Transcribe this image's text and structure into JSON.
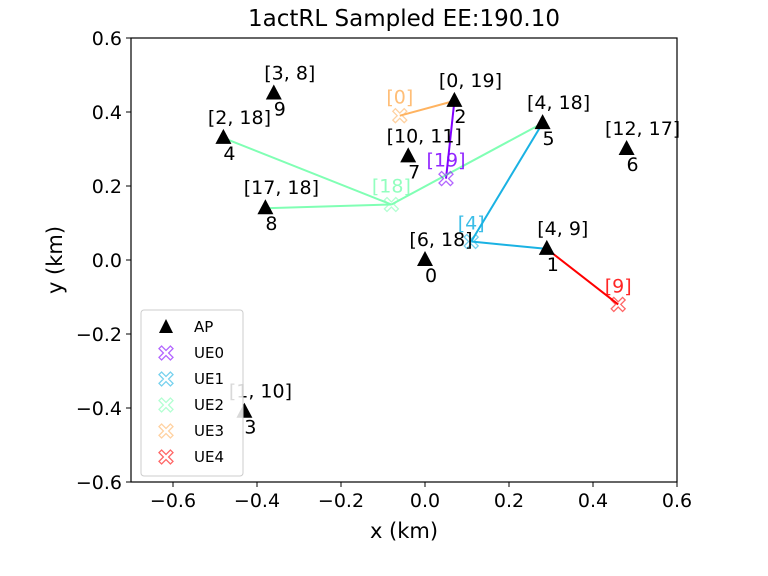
{
  "chart_data": {
    "type": "scatter",
    "title": "1actRL Sampled EE:190.10",
    "xlabel": "x (km)",
    "ylabel": "y (km)",
    "xlim": [
      -0.7,
      0.6
    ],
    "ylim": [
      -0.6,
      0.6
    ],
    "xticks": [
      -0.6,
      -0.4,
      -0.2,
      0.0,
      0.2,
      0.4,
      0.6
    ],
    "yticks": [
      -0.6,
      -0.4,
      -0.2,
      0.0,
      0.2,
      0.4,
      0.6
    ],
    "xtick_labels": [
      "−0.6",
      "−0.4",
      "−0.2",
      "0.0",
      "0.2",
      "0.4",
      "0.6"
    ],
    "ytick_labels": [
      "−0.6",
      "−0.4",
      "−0.2",
      "0.0",
      "0.2",
      "0.4",
      "0.6"
    ],
    "grid": false,
    "legend_position": "lower-left",
    "aps": [
      {
        "id": "0",
        "x": 0.0,
        "y": 0.0,
        "label": "[6, 18]"
      },
      {
        "id": "1",
        "x": 0.29,
        "y": 0.03,
        "label": "[4, 9]"
      },
      {
        "id": "2",
        "x": 0.07,
        "y": 0.43,
        "label": "[0, 19]"
      },
      {
        "id": "3",
        "x": -0.43,
        "y": -0.41,
        "label": "[1, 10]"
      },
      {
        "id": "4",
        "x": -0.48,
        "y": 0.33,
        "label": "[2, 18]"
      },
      {
        "id": "5",
        "x": 0.28,
        "y": 0.37,
        "label": "[4, 18]"
      },
      {
        "id": "6",
        "x": 0.48,
        "y": 0.3,
        "label": "[12, 17]"
      },
      {
        "id": "7",
        "x": -0.04,
        "y": 0.28,
        "label": "[10, 11]"
      },
      {
        "id": "8",
        "x": -0.38,
        "y": 0.14,
        "label": "[17, 18]"
      },
      {
        "id": "9",
        "x": -0.36,
        "y": 0.45,
        "label": "[3, 8]"
      }
    ],
    "ues": [
      {
        "name": "UE0",
        "x": 0.05,
        "y": 0.22,
        "label": "[19]",
        "color": "#8000ff",
        "aps": [
          "2"
        ]
      },
      {
        "name": "UE1",
        "x": 0.11,
        "y": 0.05,
        "label": "[4]",
        "color": "#1ab2e3",
        "aps": [
          "1",
          "5"
        ]
      },
      {
        "name": "UE2",
        "x": -0.08,
        "y": 0.15,
        "label": "[18]",
        "color": "#80ffb4",
        "aps": [
          "4",
          "8",
          "5"
        ]
      },
      {
        "name": "UE3",
        "x": -0.06,
        "y": 0.39,
        "label": "[0]",
        "color": "#ffb360",
        "aps": [
          "2"
        ]
      },
      {
        "name": "UE4",
        "x": 0.46,
        "y": -0.12,
        "label": "[9]",
        "color": "#ff0000",
        "aps": [
          "1"
        ]
      }
    ],
    "legend": [
      "AP",
      "UE0",
      "UE1",
      "UE2",
      "UE3",
      "UE4"
    ]
  }
}
